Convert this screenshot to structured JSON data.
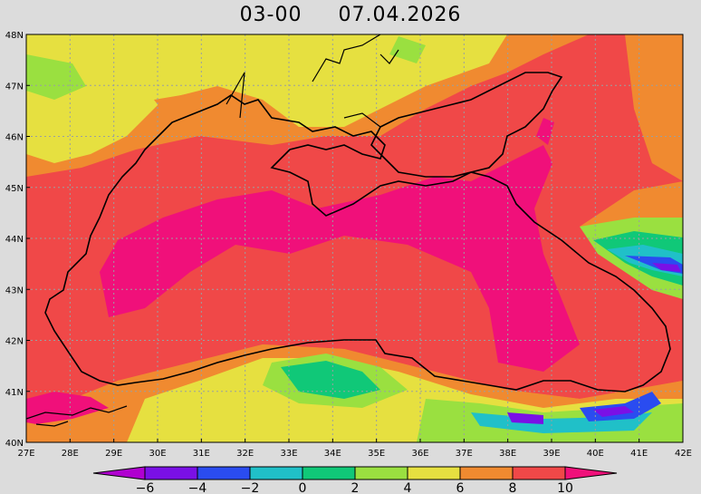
{
  "title": {
    "time": "03-00",
    "date": "07.04.2026"
  },
  "map": {
    "lat_labels": [
      "48N",
      "47N",
      "46N",
      "45N",
      "44N",
      "43N",
      "42N",
      "41N",
      "40N"
    ],
    "lon_labels": [
      "27E",
      "28E",
      "29E",
      "30E",
      "31E",
      "32E",
      "33E",
      "34E",
      "35E",
      "36E",
      "37E",
      "38E",
      "39E",
      "40E",
      "41E",
      "42E"
    ],
    "grid": true
  },
  "colorbar": {
    "labels": [
      "-6",
      "-4",
      "-2",
      "0",
      "2",
      "4",
      "6",
      "8",
      "10"
    ],
    "colors": [
      "#b000d0",
      "#7a10e6",
      "#2a4cf0",
      "#20c0c8",
      "#10c878",
      "#9ae040",
      "#e6e040",
      "#f08a30",
      "#f04848",
      "#f0107a"
    ]
  }
}
